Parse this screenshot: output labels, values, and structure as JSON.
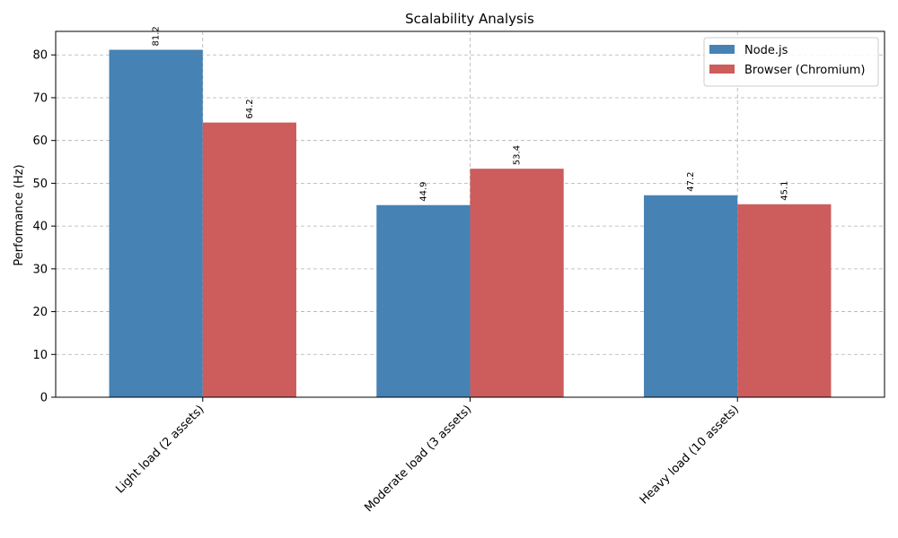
{
  "chart_data": {
    "type": "bar",
    "title": "Scalability Analysis",
    "xlabel": "",
    "ylabel": "Performance (Hz)",
    "categories": [
      "Light load (2 assets)",
      "Moderate load (3 assets)",
      "Heavy load (10 assets)"
    ],
    "series": [
      {
        "name": "Node.js",
        "values": [
          81.2,
          44.9,
          47.2
        ],
        "labels": [
          "81.2",
          "44.9",
          "47.2"
        ],
        "color": "#4682b4"
      },
      {
        "name": "Browser (Chromium)",
        "values": [
          64.2,
          53.4,
          45.1
        ],
        "labels": [
          "64.2",
          "53.4",
          "45.1"
        ],
        "color": "#cd5c5c"
      }
    ],
    "ylim": [
      0,
      85.5
    ],
    "yticks": [
      0,
      10,
      20,
      30,
      40,
      50,
      60,
      70,
      80
    ],
    "ytick_labels": [
      "0",
      "10",
      "20",
      "30",
      "40",
      "50",
      "60",
      "70",
      "80"
    ],
    "grid": true,
    "legend_position": "top-right"
  }
}
